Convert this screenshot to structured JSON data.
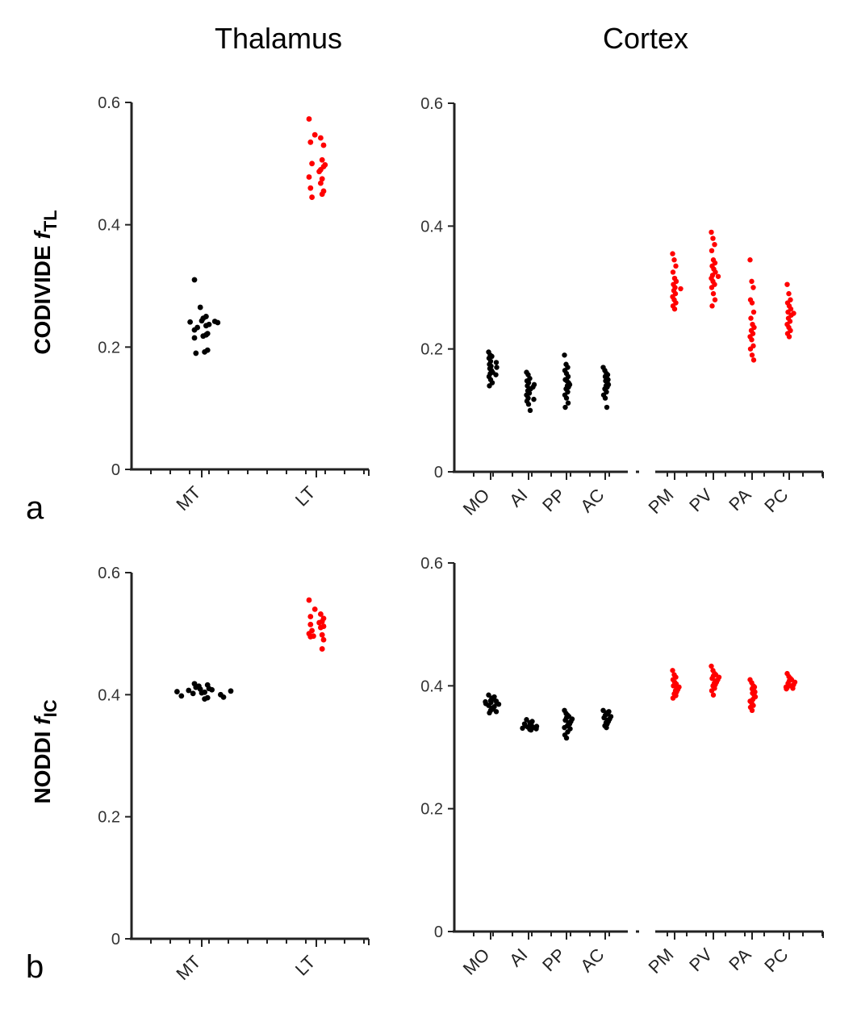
{
  "col_titles": {
    "left": "Thalamus",
    "right": "Cortex"
  },
  "row_labels": {
    "a": {
      "main": "CODIVIDE ",
      "italic": "f",
      "sub": "TL"
    },
    "b": {
      "main": "NODDI ",
      "italic": "f",
      "sub": "IC"
    }
  },
  "panel_letters": {
    "a": "a",
    "b": "b"
  },
  "colors": {
    "control": "#000000",
    "treated": "#ff0000"
  },
  "chart_data": [
    {
      "id": "a-thalamus",
      "type": "scatter",
      "title": "Thalamus",
      "ylabel": "CODIVIDE fTL",
      "ylim": [
        0,
        0.6
      ],
      "yticks": [
        "0",
        "0.2",
        "0.4",
        "0.6"
      ],
      "categories": [
        "MT",
        "LT"
      ],
      "category_colors": [
        "#000000",
        "#ff0000"
      ],
      "values": [
        [
          0.31,
          0.265,
          0.25,
          0.247,
          0.243,
          0.242,
          0.241,
          0.24,
          0.237,
          0.235,
          0.232,
          0.228,
          0.222,
          0.22,
          0.218,
          0.215,
          0.195,
          0.192,
          0.19
        ],
        [
          0.573,
          0.547,
          0.542,
          0.535,
          0.53,
          0.506,
          0.5,
          0.498,
          0.495,
          0.49,
          0.487,
          0.478,
          0.475,
          0.468,
          0.46,
          0.455,
          0.45,
          0.445
        ]
      ]
    },
    {
      "id": "a-cortex",
      "type": "scatter",
      "title": "Cortex",
      "ylabel": "CODIVIDE fTL",
      "ylim": [
        0,
        0.6
      ],
      "yticks": [
        "0",
        "0.2",
        "0.4",
        "0.6"
      ],
      "categories": [
        "MO",
        "AI",
        "PP",
        "AC",
        "PM",
        "PV",
        "PA",
        "PC"
      ],
      "category_colors": [
        "#000000",
        "#000000",
        "#000000",
        "#000000",
        "#ff0000",
        "#ff0000",
        "#ff0000",
        "#ff0000"
      ],
      "values": [
        [
          0.195,
          0.19,
          0.188,
          0.185,
          0.18,
          0.178,
          0.175,
          0.172,
          0.17,
          0.168,
          0.165,
          0.162,
          0.16,
          0.158,
          0.155,
          0.15,
          0.145,
          0.14
        ],
        [
          0.162,
          0.158,
          0.152,
          0.148,
          0.145,
          0.142,
          0.14,
          0.138,
          0.135,
          0.132,
          0.128,
          0.125,
          0.12,
          0.118,
          0.115,
          0.11,
          0.1
        ],
        [
          0.19,
          0.175,
          0.17,
          0.165,
          0.16,
          0.155,
          0.15,
          0.148,
          0.145,
          0.142,
          0.14,
          0.138,
          0.135,
          0.13,
          0.125,
          0.12,
          0.112,
          0.105
        ],
        [
          0.17,
          0.165,
          0.16,
          0.158,
          0.155,
          0.152,
          0.15,
          0.148,
          0.145,
          0.142,
          0.14,
          0.138,
          0.135,
          0.13,
          0.125,
          0.12,
          0.105
        ],
        [
          0.355,
          0.345,
          0.335,
          0.325,
          0.315,
          0.31,
          0.305,
          0.3,
          0.298,
          0.295,
          0.29,
          0.285,
          0.28,
          0.275,
          0.27,
          0.265
        ],
        [
          0.39,
          0.38,
          0.37,
          0.36,
          0.345,
          0.34,
          0.335,
          0.33,
          0.325,
          0.32,
          0.318,
          0.315,
          0.31,
          0.305,
          0.3,
          0.29,
          0.28,
          0.27
        ],
        [
          0.345,
          0.31,
          0.3,
          0.28,
          0.275,
          0.26,
          0.25,
          0.24,
          0.235,
          0.23,
          0.225,
          0.22,
          0.215,
          0.205,
          0.2,
          0.19,
          0.182
        ],
        [
          0.305,
          0.29,
          0.28,
          0.275,
          0.27,
          0.265,
          0.26,
          0.258,
          0.255,
          0.25,
          0.245,
          0.24,
          0.235,
          0.23,
          0.225,
          0.22
        ]
      ]
    },
    {
      "id": "b-thalamus",
      "type": "scatter",
      "title": "Thalamus",
      "ylabel": "NODDI fIC",
      "ylim": [
        0,
        0.6
      ],
      "yticks": [
        "0",
        "0.2",
        "0.4",
        "0.6"
      ],
      "categories": [
        "MT",
        "LT"
      ],
      "category_colors": [
        "#000000",
        "#ff0000"
      ],
      "values": [
        [
          0.418,
          0.416,
          0.414,
          0.412,
          0.41,
          0.409,
          0.408,
          0.407,
          0.406,
          0.405,
          0.404,
          0.403,
          0.402,
          0.4,
          0.398,
          0.396,
          0.395,
          0.393
        ],
        [
          0.555,
          0.54,
          0.532,
          0.528,
          0.525,
          0.52,
          0.518,
          0.515,
          0.512,
          0.51,
          0.505,
          0.5,
          0.498,
          0.496,
          0.495,
          0.49,
          0.475
        ]
      ]
    },
    {
      "id": "b-cortex",
      "type": "scatter",
      "title": "Cortex",
      "ylabel": "NODDI fIC",
      "ylim": [
        0,
        0.6
      ],
      "yticks": [
        "0",
        "0.2",
        "0.4",
        "0.6"
      ],
      "categories": [
        "MO",
        "AI",
        "PP",
        "AC",
        "PM",
        "PV",
        "PA",
        "PC"
      ],
      "category_colors": [
        "#000000",
        "#000000",
        "#000000",
        "#000000",
        "#ff0000",
        "#ff0000",
        "#ff0000",
        "#ff0000"
      ],
      "values": [
        [
          0.385,
          0.382,
          0.38,
          0.378,
          0.376,
          0.375,
          0.374,
          0.373,
          0.372,
          0.371,
          0.37,
          0.368,
          0.366,
          0.364,
          0.362,
          0.36,
          0.358,
          0.356
        ],
        [
          0.345,
          0.342,
          0.34,
          0.339,
          0.338,
          0.337,
          0.336,
          0.335,
          0.334,
          0.333,
          0.332,
          0.331,
          0.33,
          0.329,
          0.328
        ],
        [
          0.36,
          0.355,
          0.352,
          0.35,
          0.348,
          0.346,
          0.344,
          0.342,
          0.34,
          0.338,
          0.335,
          0.332,
          0.33,
          0.325,
          0.32,
          0.315
        ],
        [
          0.36,
          0.358,
          0.356,
          0.354,
          0.352,
          0.35,
          0.348,
          0.346,
          0.344,
          0.342,
          0.34,
          0.338,
          0.335,
          0.332
        ],
        [
          0.425,
          0.418,
          0.414,
          0.41,
          0.406,
          0.403,
          0.4,
          0.398,
          0.396,
          0.394,
          0.392,
          0.39,
          0.387,
          0.384,
          0.38
        ],
        [
          0.432,
          0.425,
          0.42,
          0.418,
          0.416,
          0.414,
          0.412,
          0.41,
          0.408,
          0.406,
          0.404,
          0.402,
          0.4,
          0.396,
          0.392,
          0.385
        ],
        [
          0.41,
          0.405,
          0.4,
          0.398,
          0.395,
          0.392,
          0.39,
          0.388,
          0.385,
          0.382,
          0.378,
          0.375,
          0.372,
          0.368,
          0.365,
          0.36
        ],
        [
          0.42,
          0.415,
          0.412,
          0.41,
          0.408,
          0.406,
          0.404,
          0.402,
          0.4,
          0.399,
          0.398,
          0.397,
          0.396,
          0.395
        ]
      ]
    }
  ]
}
